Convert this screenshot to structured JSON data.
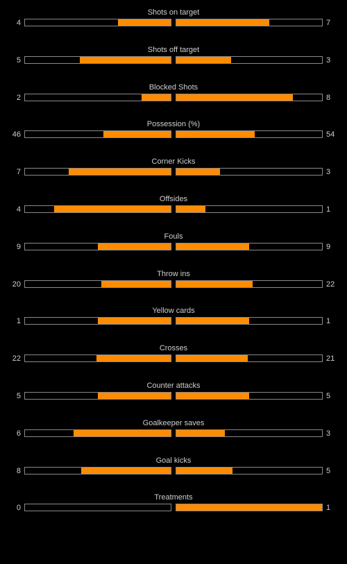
{
  "colors": {
    "background": "#000000",
    "text": "#cfcfcf",
    "bar_fill": "#ff8c00",
    "bar_border": "#8a8a8a"
  },
  "stats": [
    {
      "label": "Shots on target",
      "home": 4,
      "away": 7
    },
    {
      "label": "Shots off target",
      "home": 5,
      "away": 3
    },
    {
      "label": "Blocked Shots",
      "home": 2,
      "away": 8
    },
    {
      "label": "Possession (%)",
      "home": 46,
      "away": 54
    },
    {
      "label": "Corner Kicks",
      "home": 7,
      "away": 3
    },
    {
      "label": "Offsides",
      "home": 4,
      "away": 1
    },
    {
      "label": "Fouls",
      "home": 9,
      "away": 9
    },
    {
      "label": "Throw ins",
      "home": 20,
      "away": 22
    },
    {
      "label": "Yellow cards",
      "home": 1,
      "away": 1
    },
    {
      "label": "Crosses",
      "home": 22,
      "away": 21
    },
    {
      "label": "Counter attacks",
      "home": 5,
      "away": 5
    },
    {
      "label": "Goalkeeper saves",
      "home": 6,
      "away": 3
    },
    {
      "label": "Goal kicks",
      "home": 8,
      "away": 5
    },
    {
      "label": "Treatments",
      "home": 0,
      "away": 1
    }
  ]
}
